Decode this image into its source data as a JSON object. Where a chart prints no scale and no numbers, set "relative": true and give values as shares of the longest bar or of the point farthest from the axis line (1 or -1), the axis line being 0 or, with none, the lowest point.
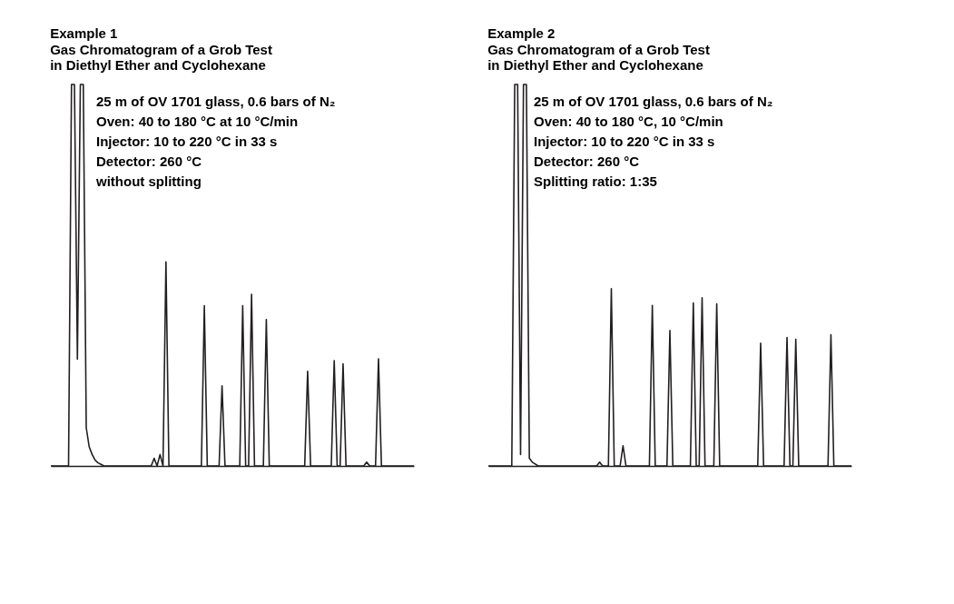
{
  "chart_data": [
    {
      "type": "line",
      "relative": true,
      "title": "Example 1",
      "subtitle": [
        "Gas Chromatogram of a Grob Test",
        "in Diethyl Ether and Cyclohexane"
      ],
      "annotations": [
        "25 m of OV 1701 glass, 0.6 bars of N₂",
        "Oven: 40 to 180 °C at 10 °C/min",
        "Injector: 10 to 220 °C in 33 s",
        "Detector: 260 °C",
        "without splitting"
      ],
      "categories": [
        null,
        null,
        null,
        null,
        null,
        null,
        null,
        null,
        null,
        null,
        null,
        null,
        null,
        null,
        null,
        null,
        null,
        null,
        null,
        null,
        null,
        null,
        null,
        null,
        null,
        null,
        null,
        null,
        null,
        null,
        null,
        null,
        null,
        null,
        null,
        null,
        null,
        null,
        null,
        null,
        null,
        null,
        null,
        null,
        null,
        null,
        null,
        null,
        null,
        null,
        null,
        null,
        null,
        null,
        null,
        null,
        null,
        null,
        null,
        null,
        null,
        null,
        null,
        null,
        null,
        null,
        null,
        null,
        null,
        null,
        null,
        null,
        null,
        null,
        null,
        null,
        null,
        null,
        null,
        null,
        null,
        null,
        null,
        null,
        null,
        null,
        null,
        null,
        null,
        null,
        null,
        null,
        null,
        null,
        null,
        null,
        null,
        null,
        null,
        null,
        null,
        null,
        null,
        null,
        null,
        null,
        null,
        null,
        null,
        null,
        null,
        null,
        null,
        null,
        null,
        null,
        null,
        null,
        null,
        null,
        null,
        null,
        null,
        null
      ],
      "series": [
        {
          "color": "#231f20",
          "values": [
            0,
            0,
            0,
            0,
            0,
            0,
            0,
            1,
            1,
            0.28,
            1,
            1,
            0.1,
            0.05,
            0.03,
            0.015,
            0.008,
            0.004,
            0,
            0,
            0,
            0,
            0,
            0,
            0,
            0,
            0,
            0,
            0,
            0,
            0,
            0,
            0,
            0,
            0,
            0.02,
            0,
            0.03,
            0,
            0.535,
            0,
            0,
            0,
            0,
            0,
            0,
            0,
            0,
            0,
            0,
            0,
            0,
            0.42,
            0,
            0,
            0,
            0,
            0,
            0.21,
            0,
            0,
            0,
            0,
            0,
            0,
            0.42,
            0,
            0,
            0.45,
            0,
            0,
            0,
            0,
            0.384,
            0,
            0,
            0,
            0,
            0,
            0,
            0,
            0,
            0,
            0,
            0,
            0,
            0,
            0.248,
            0,
            0,
            0,
            0,
            0,
            0,
            0,
            0,
            0.276,
            0,
            0,
            0.268,
            0,
            0,
            0,
            0,
            0,
            0,
            0,
            0.01,
            0,
            0,
            0,
            0.281,
            0,
            0,
            0,
            0,
            0,
            0,
            0,
            0,
            0,
            0,
            0,
            0
          ]
        }
      ]
    },
    {
      "type": "line",
      "relative": true,
      "title": "Example 2",
      "subtitle": [
        "Gas Chromatogram of a Grob Test",
        "in Diethyl Ether and Cyclohexane"
      ],
      "annotations": [
        "25 m of OV 1701 glass, 0.6 bars of N₂",
        "Oven: 40 to 180 °C, 10 °C/min",
        "Injector: 10 to 220 °C in 33 s",
        "Detector: 260 °C",
        "Splitting ratio: 1:35"
      ],
      "categories": [
        null,
        null,
        null,
        null,
        null,
        null,
        null,
        null,
        null,
        null,
        null,
        null,
        null,
        null,
        null,
        null,
        null,
        null,
        null,
        null,
        null,
        null,
        null,
        null,
        null,
        null,
        null,
        null,
        null,
        null,
        null,
        null,
        null,
        null,
        null,
        null,
        null,
        null,
        null,
        null,
        null,
        null,
        null,
        null,
        null,
        null,
        null,
        null,
        null,
        null,
        null,
        null,
        null,
        null,
        null,
        null,
        null,
        null,
        null,
        null,
        null,
        null,
        null,
        null,
        null,
        null,
        null,
        null,
        null,
        null,
        null,
        null,
        null,
        null,
        null,
        null,
        null,
        null,
        null,
        null,
        null,
        null,
        null,
        null,
        null,
        null,
        null,
        null,
        null,
        null,
        null,
        null,
        null,
        null,
        null,
        null,
        null,
        null,
        null,
        null,
        null,
        null,
        null,
        null,
        null,
        null,
        null,
        null,
        null,
        null,
        null,
        null,
        null,
        null,
        null,
        null,
        null,
        null,
        null,
        null,
        null,
        null,
        null,
        null,
        null
      ],
      "series": [
        {
          "color": "#231f20",
          "values": [
            0,
            0,
            0,
            0,
            0,
            0,
            0,
            0,
            0,
            1,
            1,
            0.03,
            1,
            1,
            0.02,
            0.01,
            0.005,
            0,
            0,
            0,
            0,
            0,
            0,
            0,
            0,
            0,
            0,
            0,
            0,
            0,
            0,
            0,
            0,
            0,
            0,
            0,
            0,
            0,
            0.01,
            0,
            0,
            0,
            0.465,
            0,
            0,
            0,
            0.053,
            0,
            0,
            0,
            0,
            0,
            0,
            0,
            0,
            0,
            0.421,
            0,
            0,
            0,
            0,
            0,
            0.355,
            0,
            0,
            0,
            0,
            0,
            0,
            0,
            0.427,
            0,
            0,
            0.441,
            0,
            0,
            0,
            0,
            0.425,
            0,
            0,
            0,
            0,
            0,
            0,
            0,
            0,
            0,
            0,
            0,
            0,
            0,
            0,
            0.322,
            0,
            0,
            0,
            0,
            0,
            0,
            0,
            0,
            0.337,
            0,
            0,
            0.332,
            0,
            0,
            0,
            0,
            0,
            0,
            0,
            0,
            0,
            0,
            0,
            0.344,
            0,
            0,
            0,
            0,
            0,
            0,
            0
          ]
        }
      ]
    }
  ]
}
